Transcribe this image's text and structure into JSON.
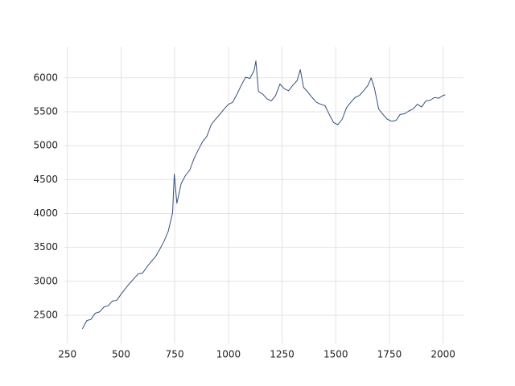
{
  "chart_data": {
    "type": "line",
    "x": [
      320,
      340,
      360,
      380,
      400,
      420,
      440,
      460,
      480,
      500,
      520,
      540,
      560,
      580,
      600,
      620,
      640,
      660,
      680,
      700,
      720,
      740,
      748,
      760,
      780,
      800,
      820,
      840,
      860,
      880,
      900,
      920,
      940,
      960,
      980,
      1000,
      1020,
      1040,
      1060,
      1080,
      1100,
      1120,
      1128,
      1140,
      1160,
      1180,
      1200,
      1220,
      1240,
      1260,
      1280,
      1300,
      1320,
      1335,
      1350,
      1370,
      1390,
      1410,
      1430,
      1450,
      1470,
      1490,
      1510,
      1530,
      1550,
      1570,
      1590,
      1610,
      1630,
      1650,
      1665,
      1680,
      1700,
      1720,
      1740,
      1760,
      1780,
      1800,
      1820,
      1840,
      1860,
      1880,
      1900,
      1920,
      1940,
      1960,
      1980,
      2000,
      2010
    ],
    "values": [
      2300,
      2420,
      2440,
      2530,
      2550,
      2620,
      2640,
      2710,
      2720,
      2810,
      2890,
      2970,
      3040,
      3110,
      3120,
      3210,
      3290,
      3360,
      3470,
      3590,
      3740,
      4010,
      4580,
      4150,
      4440,
      4560,
      4640,
      4810,
      4940,
      5060,
      5140,
      5310,
      5390,
      5460,
      5540,
      5610,
      5640,
      5760,
      5890,
      6010,
      5990,
      6110,
      6250,
      5800,
      5760,
      5690,
      5660,
      5740,
      5910,
      5840,
      5810,
      5890,
      5960,
      6120,
      5860,
      5790,
      5710,
      5640,
      5610,
      5590,
      5460,
      5340,
      5310,
      5390,
      5560,
      5640,
      5710,
      5740,
      5810,
      5890,
      6000,
      5850,
      5540,
      5460,
      5390,
      5360,
      5370,
      5460,
      5470,
      5510,
      5540,
      5610,
      5570,
      5660,
      5670,
      5710,
      5700,
      5740,
      5750
    ],
    "color": "#34507a",
    "xlim": [
      236,
      2095
    ],
    "ylim": [
      2085,
      6460
    ],
    "xticks": [
      250,
      500,
      750,
      1000,
      1250,
      1500,
      1750,
      2000
    ],
    "yticks": [
      2500,
      3000,
      3500,
      4000,
      4500,
      5000,
      5500,
      6000
    ],
    "grid": true
  }
}
